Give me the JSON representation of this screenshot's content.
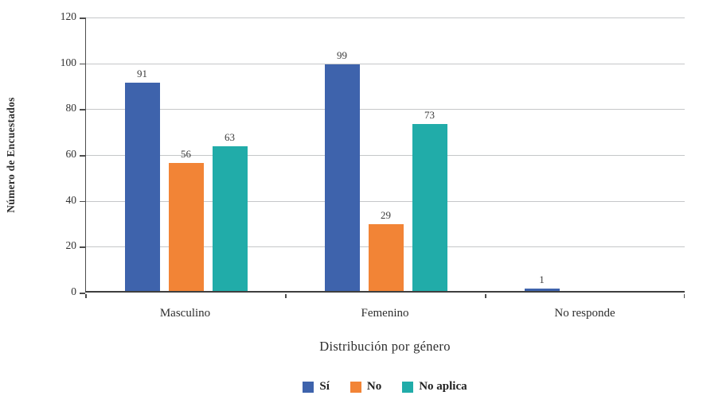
{
  "chart_data": {
    "type": "bar",
    "title": "",
    "xlabel": "Distribución por género",
    "ylabel": "Número de Encuestados",
    "categories": [
      "Masculino",
      "Femenino",
      "No responde"
    ],
    "series": [
      {
        "name": "Sí",
        "color": "#3e63ac",
        "values": [
          91,
          99,
          1
        ]
      },
      {
        "name": "No",
        "color": "#f28436",
        "values": [
          56,
          29,
          null
        ]
      },
      {
        "name": "No aplica",
        "color": "#21aca9",
        "values": [
          63,
          73,
          null
        ]
      }
    ],
    "data_labels": {
      "Masculino": [
        "91",
        "56",
        "63"
      ],
      "Femenino": [
        "99",
        "29",
        "73"
      ],
      "No responde": [
        "1",
        "",
        ""
      ]
    },
    "ylim": [
      0,
      120
    ],
    "ytick_step": 20,
    "ytick_labels": [
      "0",
      "20",
      "40",
      "60",
      "80",
      "100",
      "120"
    ],
    "grid": "horizontal-only",
    "legend_position": "bottom-center"
  },
  "colors": {
    "background": "#ffffff",
    "gridline": "#c5c7c9",
    "axis_line": "#4d4d4d",
    "text": "#2e2e2e",
    "data_label_text": "#3c3c3c"
  }
}
